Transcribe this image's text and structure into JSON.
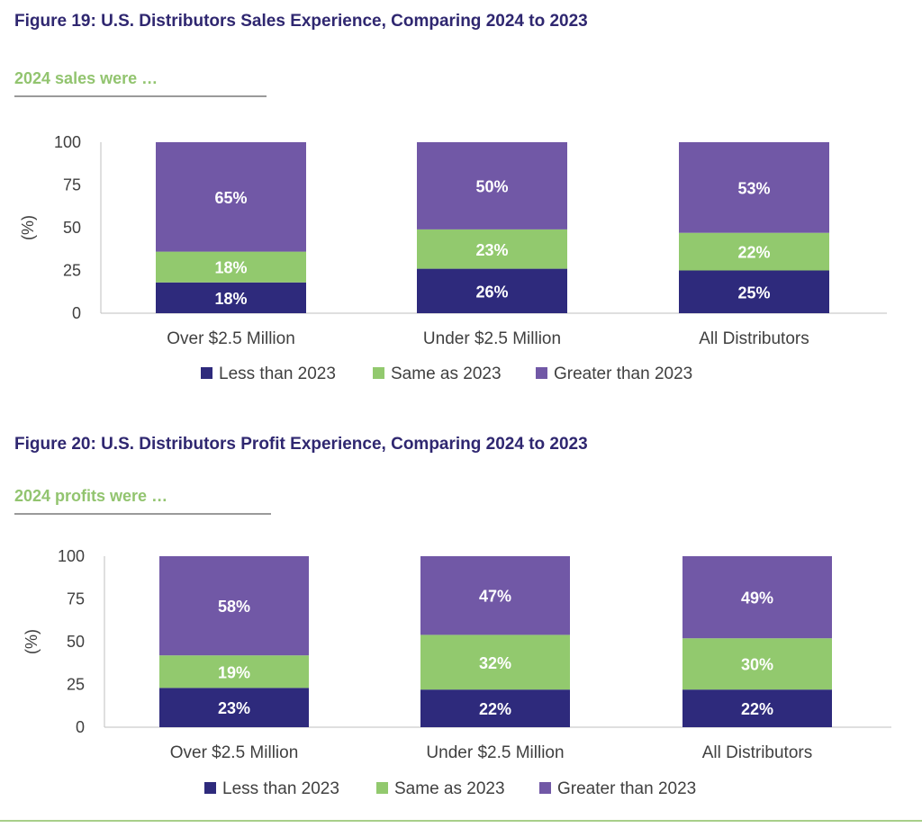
{
  "colors": {
    "less": "#2e2a7c",
    "same": "#92c96e",
    "greater": "#7158a6",
    "title": "#2f2770",
    "subtitle": "#92c46f"
  },
  "chart_data": [
    {
      "type": "bar",
      "stacked": true,
      "title": "Figure 19: U.S. Distributors Sales Experience, Comparing 2024 to 2023",
      "subtitle": "2024 sales were …",
      "ylabel": "(%)",
      "ylim": [
        0,
        100
      ],
      "yticks": [
        0,
        25,
        50,
        75,
        100
      ],
      "categories": [
        "Over $2.5 Million",
        "Under $2.5 Million",
        "All Distributors"
      ],
      "series": [
        {
          "name": "Less than 2023",
          "values": [
            18,
            26,
            25
          ],
          "labels": [
            "18%",
            "26%",
            "25%"
          ]
        },
        {
          "name": "Same as 2023",
          "values": [
            18,
            23,
            22
          ],
          "labels": [
            "18%",
            "23%",
            "22%"
          ]
        },
        {
          "name": "Greater than 2023",
          "values": [
            65,
            50,
            53
          ],
          "labels": [
            "65%",
            "50%",
            "53%"
          ]
        }
      ],
      "legend": "bottom",
      "grid": false
    },
    {
      "type": "bar",
      "stacked": true,
      "title": "Figure 20: U.S. Distributors Profit Experience, Comparing 2024 to 2023",
      "subtitle": "2024 profits were …",
      "ylabel": "(%)",
      "ylim": [
        0,
        100
      ],
      "yticks": [
        0,
        25,
        50,
        75,
        100
      ],
      "categories": [
        "Over $2.5 Million",
        "Under $2.5 Million",
        "All Distributors"
      ],
      "series": [
        {
          "name": "Less than 2023",
          "values": [
            23,
            22,
            22
          ],
          "labels": [
            "23%",
            "22%",
            "22%"
          ]
        },
        {
          "name": "Same as 2023",
          "values": [
            19,
            32,
            30
          ],
          "labels": [
            "19%",
            "32%",
            "30%"
          ]
        },
        {
          "name": "Greater than 2023",
          "values": [
            58,
            47,
            49
          ],
          "labels": [
            "58%",
            "47%",
            "49%"
          ]
        }
      ],
      "legend": "bottom",
      "grid": false
    }
  ]
}
